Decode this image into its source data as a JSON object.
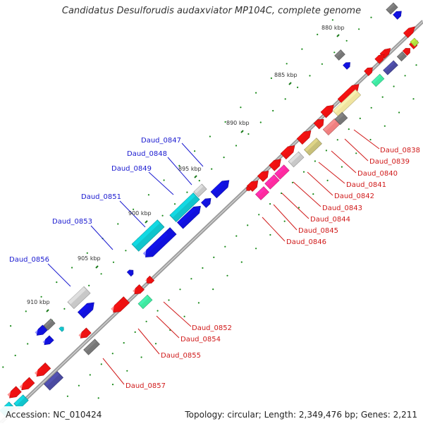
{
  "title": "Candidatus Desulforudis audaxviator MP104C, complete genome",
  "footer": {
    "accession": "Accession: NC_010424",
    "topology": "Topology: circular; Length: 2,349,476 bp; Genes: 2,211"
  },
  "ticks": [
    "880 kbp",
    "885 kbp",
    "890 kbp",
    "895 kbp",
    "900 kbp",
    "905 kbp",
    "910 kbp"
  ],
  "left_labels": [
    "Daud_0847",
    "Daud_0848",
    "Daud_0849",
    "Daud_0851",
    "Daud_0853",
    "Daud_0856"
  ],
  "right_labels_upper": [
    "Daud_0838",
    "Daud_0839",
    "Daud_0840",
    "Daud_0841",
    "Daud_0842",
    "Daud_0843",
    "Daud_0844",
    "Daud_0845",
    "Daud_0846"
  ],
  "right_labels_lower": [
    "Daud_0852",
    "Daud_0854",
    "Daud_0855",
    "Daud_0857"
  ],
  "colors": {
    "backbone": "#8a8a8a",
    "label_blue": "#1a1ad0",
    "label_red": "#d01a1a",
    "gene_red": "#ee1111",
    "gene_blue": "#1111dd",
    "gene_cyan": "#11c4cc",
    "gene_gray": "#777777",
    "gene_lightgray": "#c8c8c8",
    "gene_pink": "#ff2aa0",
    "gene_khaki": "#c8c07a",
    "gene_cream": "#f0e4a0",
    "gene_salmon": "#f08080",
    "gene_navy": "#4a4aa0",
    "gene_mint": "#3fe8a0",
    "gene_lime": "#b0e040",
    "tick_green": "#1a8a1a"
  }
}
